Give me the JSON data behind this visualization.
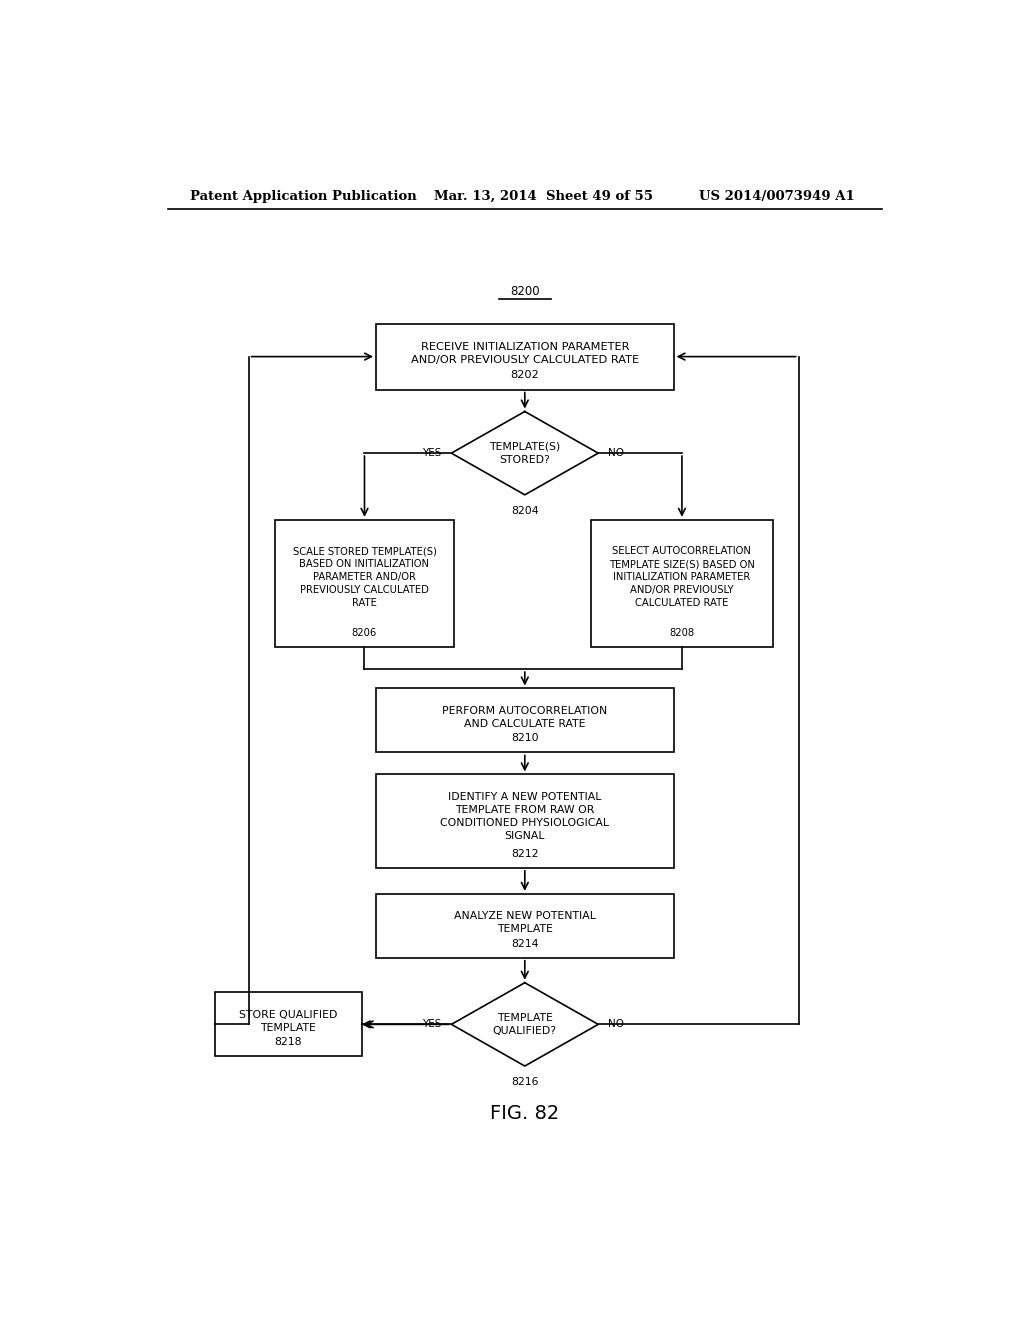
{
  "header_left": "Patent Application Publication",
  "header_mid": "Mar. 13, 2014  Sheet 49 of 55",
  "header_right": "US 2014/0073949 A1",
  "fig_label": "FIG. 82",
  "bg_color": "#ffffff"
}
